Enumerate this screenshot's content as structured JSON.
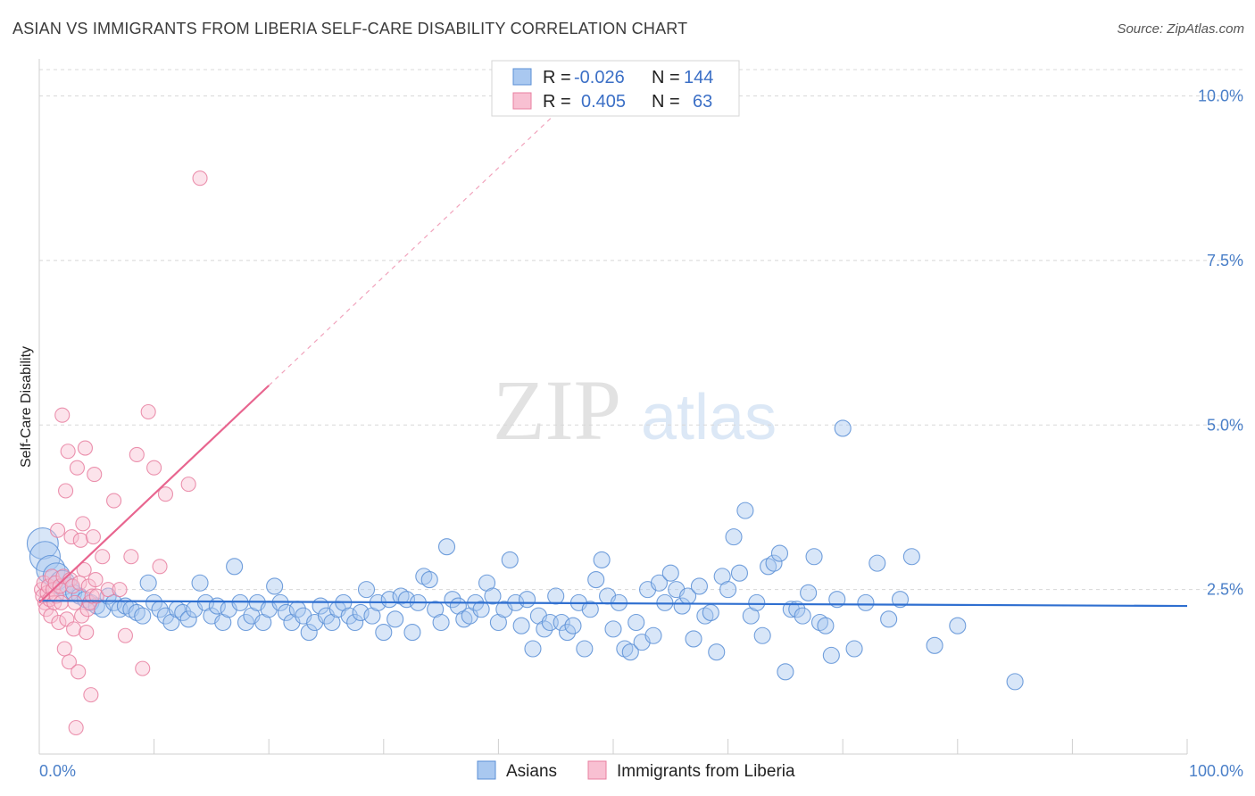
{
  "title": "ASIAN VS IMMIGRANTS FROM LIBERIA SELF-CARE DISABILITY CORRELATION CHART",
  "source": "Source: ZipAtlas.com",
  "watermark": {
    "zip": "ZIP",
    "atlas": "atlas"
  },
  "colors": {
    "asian_fill": "#a9c8f0",
    "asian_stroke": "#5b8fd6",
    "asian_line": "#2f6fd0",
    "liberia_fill": "#f8c0d2",
    "liberia_stroke": "#e87fa0",
    "liberia_line": "#e8658f",
    "axis_text": "#4a7fc8",
    "grid": "#d8d8d8"
  },
  "legend": {
    "rows": [
      {
        "r_label": "R =",
        "r_value": "-0.026",
        "n_label": "N =",
        "n_value": "144"
      },
      {
        "r_label": "R =",
        "r_value": "0.405",
        "n_label": "N =",
        "n_value": "63"
      }
    ]
  },
  "chart_data": {
    "type": "scatter",
    "xlabel": "",
    "ylabel": "Self-Care Disability",
    "xlim": [
      0,
      100
    ],
    "ylim": [
      0,
      10.4
    ],
    "x_tick_labels": [
      "0.0%",
      "100.0%"
    ],
    "y_ticks": [
      2.5,
      5.0,
      7.5,
      10.0
    ],
    "y_tick_labels": [
      "2.5%",
      "5.0%",
      "7.5%",
      "10.0%"
    ],
    "legend_position": "bottom-center",
    "series": [
      {
        "name": "Asians",
        "r": -0.026,
        "n": 144,
        "trend": {
          "x": [
            0,
            100
          ],
          "y": [
            2.33,
            2.25
          ],
          "style": "solid"
        },
        "points": [
          [
            0.3,
            3.2
          ],
          [
            0.5,
            3.0
          ],
          [
            1,
            2.8
          ],
          [
            1.5,
            2.7
          ],
          [
            2,
            2.6
          ],
          [
            2.5,
            2.5
          ],
          [
            3,
            2.45
          ],
          [
            3.5,
            2.4
          ],
          [
            4,
            2.35
          ],
          [
            4.5,
            2.3
          ],
          [
            5,
            2.25
          ],
          [
            5.5,
            2.2
          ],
          [
            6,
            2.4
          ],
          [
            6.5,
            2.3
          ],
          [
            7,
            2.2
          ],
          [
            7.5,
            2.25
          ],
          [
            8,
            2.2
          ],
          [
            8.5,
            2.15
          ],
          [
            9,
            2.1
          ],
          [
            9.5,
            2.6
          ],
          [
            10,
            2.3
          ],
          [
            10.5,
            2.2
          ],
          [
            11,
            2.1
          ],
          [
            11.5,
            2.0
          ],
          [
            12,
            2.2
          ],
          [
            12.5,
            2.15
          ],
          [
            13,
            2.05
          ],
          [
            13.5,
            2.2
          ],
          [
            14,
            2.6
          ],
          [
            14.5,
            2.3
          ],
          [
            15,
            2.1
          ],
          [
            15.5,
            2.25
          ],
          [
            16,
            2.0
          ],
          [
            16.5,
            2.2
          ],
          [
            17,
            2.85
          ],
          [
            17.5,
            2.3
          ],
          [
            18,
            2.0
          ],
          [
            18.5,
            2.1
          ],
          [
            19,
            2.3
          ],
          [
            19.5,
            2.0
          ],
          [
            20,
            2.2
          ],
          [
            20.5,
            2.55
          ],
          [
            21,
            2.3
          ],
          [
            21.5,
            2.15
          ],
          [
            22,
            2.0
          ],
          [
            22.5,
            2.2
          ],
          [
            23,
            2.1
          ],
          [
            23.5,
            1.85
          ],
          [
            24,
            2.0
          ],
          [
            24.5,
            2.25
          ],
          [
            25,
            2.1
          ],
          [
            25.5,
            2.0
          ],
          [
            26,
            2.2
          ],
          [
            26.5,
            2.3
          ],
          [
            27,
            2.1
          ],
          [
            27.5,
            2.0
          ],
          [
            28,
            2.15
          ],
          [
            28.5,
            2.5
          ],
          [
            29,
            2.1
          ],
          [
            29.5,
            2.3
          ],
          [
            30,
            1.85
          ],
          [
            30.5,
            2.35
          ],
          [
            31,
            2.05
          ],
          [
            31.5,
            2.4
          ],
          [
            32,
            2.35
          ],
          [
            32.5,
            1.85
          ],
          [
            33,
            2.3
          ],
          [
            33.5,
            2.7
          ],
          [
            34,
            2.65
          ],
          [
            34.5,
            2.2
          ],
          [
            35,
            2.0
          ],
          [
            35.5,
            3.15
          ],
          [
            36,
            2.35
          ],
          [
            36.5,
            2.25
          ],
          [
            37,
            2.05
          ],
          [
            37.5,
            2.1
          ],
          [
            38,
            2.3
          ],
          [
            38.5,
            2.2
          ],
          [
            39,
            2.6
          ],
          [
            39.5,
            2.4
          ],
          [
            40,
            2.0
          ],
          [
            40.5,
            2.2
          ],
          [
            41,
            2.95
          ],
          [
            41.5,
            2.3
          ],
          [
            42,
            1.95
          ],
          [
            42.5,
            2.35
          ],
          [
            43,
            1.6
          ],
          [
            43.5,
            2.1
          ],
          [
            44,
            1.9
          ],
          [
            44.5,
            2.0
          ],
          [
            45,
            2.4
          ],
          [
            45.5,
            2.0
          ],
          [
            46,
            1.85
          ],
          [
            46.5,
            1.95
          ],
          [
            47,
            2.3
          ],
          [
            47.5,
            1.6
          ],
          [
            48,
            2.2
          ],
          [
            48.5,
            2.65
          ],
          [
            49,
            2.95
          ],
          [
            49.5,
            2.4
          ],
          [
            50,
            1.9
          ],
          [
            50.5,
            2.3
          ],
          [
            51,
            1.6
          ],
          [
            51.5,
            1.55
          ],
          [
            52,
            2.0
          ],
          [
            52.5,
            1.7
          ],
          [
            53,
            2.5
          ],
          [
            53.5,
            1.8
          ],
          [
            54,
            2.6
          ],
          [
            54.5,
            2.3
          ],
          [
            55,
            2.75
          ],
          [
            55.5,
            2.5
          ],
          [
            56,
            2.25
          ],
          [
            56.5,
            2.4
          ],
          [
            57,
            1.75
          ],
          [
            57.5,
            2.55
          ],
          [
            58,
            2.1
          ],
          [
            58.5,
            2.15
          ],
          [
            59,
            1.55
          ],
          [
            59.5,
            2.7
          ],
          [
            60,
            2.5
          ],
          [
            60.5,
            3.3
          ],
          [
            61,
            2.75
          ],
          [
            61.5,
            3.7
          ],
          [
            62,
            2.1
          ],
          [
            62.5,
            2.3
          ],
          [
            63,
            1.8
          ],
          [
            63.5,
            2.85
          ],
          [
            64,
            2.9
          ],
          [
            64.5,
            3.05
          ],
          [
            65,
            1.25
          ],
          [
            65.5,
            2.2
          ],
          [
            66,
            2.2
          ],
          [
            66.5,
            2.1
          ],
          [
            67,
            2.45
          ],
          [
            67.5,
            3.0
          ],
          [
            68,
            2.0
          ],
          [
            68.5,
            1.95
          ],
          [
            69,
            1.5
          ],
          [
            69.5,
            2.35
          ],
          [
            70,
            4.95
          ],
          [
            71,
            1.6
          ],
          [
            72,
            2.3
          ],
          [
            73,
            2.9
          ],
          [
            74,
            2.05
          ],
          [
            75,
            2.35
          ],
          [
            76,
            3.0
          ],
          [
            78,
            1.65
          ],
          [
            80,
            1.95
          ],
          [
            85,
            1.1
          ]
        ]
      },
      {
        "name": "Immigrants from Liberia",
        "r": 0.405,
        "n": 63,
        "trend": {
          "x": [
            0,
            20
          ],
          "y": [
            2.3,
            5.6
          ],
          "style": "solid",
          "extension": {
            "x": [
              20,
              46
            ],
            "y": [
              5.6,
              9.9
            ],
            "style": "dashed"
          }
        },
        "points": [
          [
            0.2,
            2.5
          ],
          [
            0.3,
            2.4
          ],
          [
            0.4,
            2.6
          ],
          [
            0.5,
            2.3
          ],
          [
            0.6,
            2.2
          ],
          [
            0.7,
            2.45
          ],
          [
            0.8,
            2.55
          ],
          [
            0.9,
            2.35
          ],
          [
            1.0,
            2.1
          ],
          [
            1.1,
            2.7
          ],
          [
            1.2,
            2.5
          ],
          [
            1.3,
            2.3
          ],
          [
            1.4,
            2.6
          ],
          [
            1.5,
            2.4
          ],
          [
            1.6,
            3.4
          ],
          [
            1.7,
            2.0
          ],
          [
            1.8,
            2.55
          ],
          [
            1.9,
            2.3
          ],
          [
            2.0,
            5.15
          ],
          [
            2.1,
            2.7
          ],
          [
            2.2,
            1.6
          ],
          [
            2.3,
            4.0
          ],
          [
            2.4,
            2.05
          ],
          [
            2.5,
            4.6
          ],
          [
            2.6,
            1.4
          ],
          [
            2.7,
            2.65
          ],
          [
            2.8,
            3.3
          ],
          [
            2.9,
            2.55
          ],
          [
            3.0,
            1.9
          ],
          [
            3.1,
            2.3
          ],
          [
            3.2,
            0.4
          ],
          [
            3.3,
            4.35
          ],
          [
            3.4,
            1.25
          ],
          [
            3.5,
            2.6
          ],
          [
            3.6,
            3.25
          ],
          [
            3.7,
            2.1
          ],
          [
            3.8,
            3.5
          ],
          [
            3.9,
            2.8
          ],
          [
            4.0,
            4.65
          ],
          [
            4.1,
            1.85
          ],
          [
            4.2,
            2.2
          ],
          [
            4.3,
            2.55
          ],
          [
            4.4,
            2.3
          ],
          [
            4.5,
            0.9
          ],
          [
            4.6,
            2.4
          ],
          [
            4.7,
            3.3
          ],
          [
            4.8,
            4.25
          ],
          [
            4.9,
            2.65
          ],
          [
            5.0,
            2.4
          ],
          [
            5.5,
            3.0
          ],
          [
            6.0,
            2.5
          ],
          [
            6.5,
            3.85
          ],
          [
            7.0,
            2.5
          ],
          [
            7.5,
            1.8
          ],
          [
            8.0,
            3.0
          ],
          [
            8.5,
            4.55
          ],
          [
            9.0,
            1.3
          ],
          [
            9.5,
            5.2
          ],
          [
            10.0,
            4.35
          ],
          [
            10.5,
            2.85
          ],
          [
            11.0,
            3.95
          ],
          [
            13.0,
            4.1
          ],
          [
            14.0,
            8.75
          ]
        ]
      }
    ]
  },
  "bottom_legend": [
    "Asians",
    "Immigrants from Liberia"
  ]
}
